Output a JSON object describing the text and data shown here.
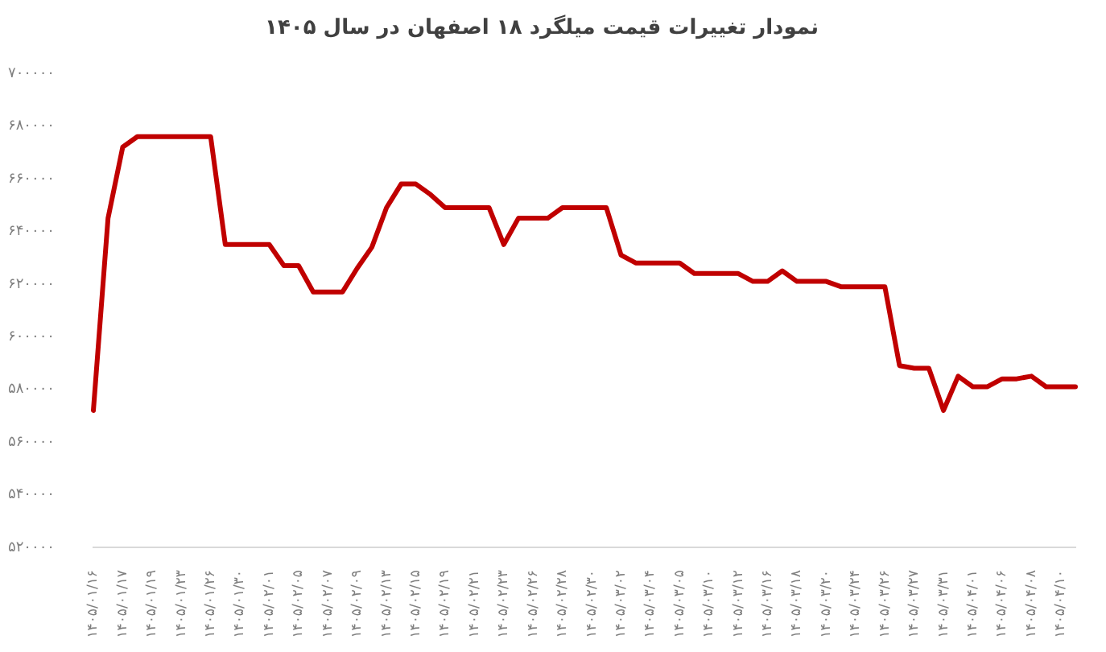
{
  "chart_data": {
    "type": "line",
    "title": "نمودار تغییرات قیمت میلگرد ۱۸ اصفهان در سال ۱۴۰۵",
    "categories": [
      "۱۴۰۵/۰۱/۱۶",
      null,
      "۱۴۰۵/۰۱/۱۷",
      null,
      "۱۴۰۵/۰۱/۱۹",
      null,
      "۱۴۰۵/۰۱/۲۳",
      null,
      "۱۴۰۵/۰۱/۲۶",
      null,
      "۱۴۰۵/۰۱/۳۰",
      null,
      "۱۴۰۵/۰۲/۰۱",
      null,
      "۱۴۰۵/۰۲/۰۵",
      null,
      "۱۴۰۵/۰۲/۰۷",
      null,
      "۱۴۰۵/۰۲/۰۹",
      null,
      "۱۴۰۵/۰۲/۱۳",
      null,
      "۱۴۰۵/۰۲/۱۵",
      null,
      "۱۴۰۵/۰۲/۱۹",
      null,
      "۱۴۰۵/۰۲/۲۱",
      null,
      "۱۴۰۵/۰۲/۲۳",
      null,
      "۱۴۰۵/۰۲/۲۶",
      null,
      "۱۴۰۵/۰۲/۲۸",
      null,
      "۱۴۰۵/۰۲/۳۰",
      null,
      "۱۴۰۵/۰۳/۰۲",
      null,
      "۱۴۰۵/۰۳/۰۴",
      null,
      "۱۴۰۵/۰۳/۰۵",
      null,
      "۱۴۰۵/۰۳/۱۰",
      null,
      "۱۴۰۵/۰۳/۱۲",
      null,
      "۱۴۰۵/۰۳/۱۶",
      null,
      "۱۴۰۵/۰۳/۱۸",
      null,
      "۱۴۰۵/۰۳/۲۰",
      null,
      "۱۴۰۵/۰۳/۲۴",
      null,
      "۱۴۰۵/۰۳/۲۶",
      null,
      "۱۴۰۵/۰۳/۲۷",
      null,
      "۱۴۰۵/۰۳/۳۱",
      null,
      "۱۴۰۵/۰۴/۰۱",
      null,
      "۱۴۰۵/۰۴/۰۶",
      null,
      "۱۴۰۵/۰۴/۰۸",
      null,
      "۱۴۰۵/۰۴/۱۰",
      null
    ],
    "series": [
      {
        "color": "#c00000",
        "values": [
          572000,
          645000,
          672000,
          676000,
          676000,
          676000,
          676000,
          676000,
          676000,
          635000,
          635000,
          635000,
          635000,
          627000,
          627000,
          617000,
          617000,
          617000,
          626000,
          634000,
          649000,
          658000,
          658000,
          654000,
          649000,
          649000,
          649000,
          649000,
          635000,
          645000,
          645000,
          645000,
          649000,
          649000,
          649000,
          649000,
          631000,
          628000,
          628000,
          628000,
          628000,
          624000,
          624000,
          624000,
          624000,
          621000,
          621000,
          625000,
          621000,
          621000,
          621000,
          619000,
          619000,
          619000,
          619000,
          589000,
          588000,
          588000,
          572000,
          585000,
          581000,
          581000,
          584000,
          584000,
          585000,
          581000,
          581000,
          581000
        ]
      }
    ],
    "ylim": [
      520000,
      700000
    ],
    "yticks": [
      {
        "value": 520000,
        "label": "۵۲۰۰۰۰"
      },
      {
        "value": 540000,
        "label": "۵۴۰۰۰۰"
      },
      {
        "value": 560000,
        "label": "۵۶۰۰۰۰"
      },
      {
        "value": 580000,
        "label": "۵۸۰۰۰۰"
      },
      {
        "value": 600000,
        "label": "۶۰۰۰۰۰"
      },
      {
        "value": 620000,
        "label": "۶۲۰۰۰۰"
      },
      {
        "value": 640000,
        "label": "۶۴۰۰۰۰"
      },
      {
        "value": 660000,
        "label": "۶۶۰۰۰۰"
      },
      {
        "value": 680000,
        "label": "۶۸۰۰۰۰"
      },
      {
        "value": 700000,
        "label": "۷۰۰۰۰۰"
      }
    ],
    "grid": false,
    "marker": "none",
    "line_style": "solid"
  }
}
